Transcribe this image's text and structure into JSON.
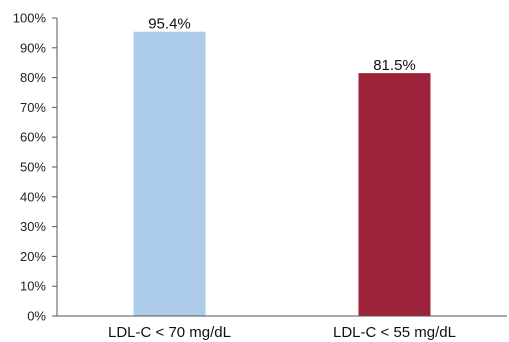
{
  "chart_data": {
    "type": "bar",
    "categories": [
      "LDL-C < 70 mg/dL",
      "LDL-C < 55 mg/dL"
    ],
    "values": [
      95.4,
      81.5
    ],
    "data_labels": [
      "95.4%",
      "81.5%"
    ],
    "colors": [
      "#adcbea",
      "#9c2339"
    ],
    "ylim": [
      0,
      100
    ],
    "y_ticks": [
      0,
      10,
      20,
      30,
      40,
      50,
      60,
      70,
      80,
      90,
      100
    ],
    "y_tick_labels": [
      "0%",
      "10%",
      "20%",
      "30%",
      "40%",
      "50%",
      "60%",
      "70%",
      "80%",
      "90%",
      "100%"
    ],
    "title": "",
    "xlabel": "",
    "ylabel": "",
    "grid": false,
    "legend": "none"
  }
}
